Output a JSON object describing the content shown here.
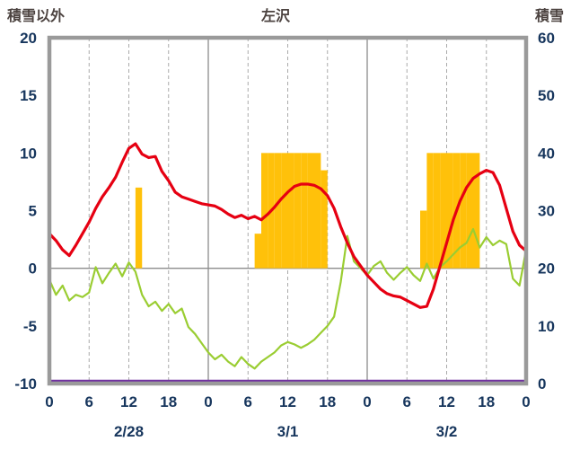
{
  "chart_data": {
    "type": "line+bar",
    "title": "左沢",
    "hours_total": 72,
    "left_axis": {
      "title": "積雪以外",
      "min": -10,
      "max": 20,
      "ticks": [
        20,
        15,
        10,
        5,
        0,
        -5,
        -10
      ]
    },
    "right_axis": {
      "title": "積雪",
      "min": 0,
      "max": 60,
      "ticks": [
        60,
        50,
        40,
        30,
        20,
        10,
        0
      ]
    },
    "x_ticks": [
      {
        "hour": 0,
        "label": "0"
      },
      {
        "hour": 6,
        "label": "6"
      },
      {
        "hour": 12,
        "label": "12"
      },
      {
        "hour": 18,
        "label": "18"
      },
      {
        "hour": 24,
        "label": "0"
      },
      {
        "hour": 30,
        "label": "6"
      },
      {
        "hour": 36,
        "label": "12"
      },
      {
        "hour": 42,
        "label": "18"
      },
      {
        "hour": 48,
        "label": "0"
      },
      {
        "hour": 54,
        "label": "6"
      },
      {
        "hour": 60,
        "label": "12"
      },
      {
        "hour": 66,
        "label": "18"
      },
      {
        "hour": 72,
        "label": "0"
      }
    ],
    "date_labels": [
      {
        "label": "2/28",
        "center_hour": 12
      },
      {
        "label": "3/1",
        "center_hour": 36
      },
      {
        "label": "3/2",
        "center_hour": 60
      }
    ],
    "grid": {
      "vertical_dashed_hours": [
        6,
        12,
        18,
        30,
        36,
        42,
        54,
        60,
        66
      ],
      "vertical_solid_hours": [
        24,
        48
      ],
      "horizontal_solid_values": [
        0
      ]
    },
    "colors": {
      "frame": "#9a9a9a",
      "grid_solid": "#8c8c8c",
      "grid_dashed": "#aaaaaa",
      "axis_text": "#17365d",
      "header_text": "#4c4340",
      "background": "#ffffff"
    },
    "series": [
      {
        "name": "orange-bars",
        "type": "bar",
        "axis": "left",
        "color": "#ffc10a",
        "bars": [
          {
            "hour": 13,
            "value": 7
          },
          {
            "hour": 31,
            "value": 3
          },
          {
            "hour": 32,
            "value": 10
          },
          {
            "hour": 33,
            "value": 10
          },
          {
            "hour": 34,
            "value": 10
          },
          {
            "hour": 35,
            "value": 10
          },
          {
            "hour": 36,
            "value": 10
          },
          {
            "hour": 37,
            "value": 10
          },
          {
            "hour": 38,
            "value": 10
          },
          {
            "hour": 39,
            "value": 10
          },
          {
            "hour": 40,
            "value": 10
          },
          {
            "hour": 41,
            "value": 8.5
          },
          {
            "hour": 56,
            "value": 5
          },
          {
            "hour": 57,
            "value": 10
          },
          {
            "hour": 58,
            "value": 10
          },
          {
            "hour": 59,
            "value": 10
          },
          {
            "hour": 60,
            "value": 10
          },
          {
            "hour": 61,
            "value": 10
          },
          {
            "hour": 62,
            "value": 10
          },
          {
            "hour": 63,
            "value": 10
          },
          {
            "hour": 64,
            "value": 10
          }
        ]
      },
      {
        "name": "purple-line",
        "type": "line",
        "axis": "right",
        "color": "#7030a0",
        "width": 2.5,
        "points": [
          [
            0,
            0
          ],
          [
            72,
            0
          ]
        ]
      },
      {
        "name": "green-line",
        "type": "line",
        "axis": "left",
        "color": "#9acd32",
        "width": 2.2,
        "points": [
          [
            0,
            -1.0
          ],
          [
            1,
            -2.3
          ],
          [
            2,
            -1.5
          ],
          [
            3,
            -2.8
          ],
          [
            4,
            -2.3
          ],
          [
            5,
            -2.5
          ],
          [
            6,
            -2.1
          ],
          [
            7,
            0.1
          ],
          [
            8,
            -1.3
          ],
          [
            9,
            -0.4
          ],
          [
            10,
            0.4
          ],
          [
            11,
            -0.7
          ],
          [
            12,
            0.5
          ],
          [
            13,
            -0.3
          ],
          [
            14,
            -2.3
          ],
          [
            15,
            -3.3
          ],
          [
            16,
            -2.9
          ],
          [
            17,
            -3.7
          ],
          [
            18,
            -3.1
          ],
          [
            19,
            -3.9
          ],
          [
            20,
            -3.5
          ],
          [
            21,
            -5.1
          ],
          [
            22,
            -5.7
          ],
          [
            23,
            -6.5
          ],
          [
            24,
            -7.3
          ],
          [
            25,
            -7.9
          ],
          [
            26,
            -7.5
          ],
          [
            27,
            -8.1
          ],
          [
            28,
            -8.5
          ],
          [
            29,
            -7.7
          ],
          [
            30,
            -8.3
          ],
          [
            31,
            -8.7
          ],
          [
            32,
            -8.1
          ],
          [
            33,
            -7.7
          ],
          [
            34,
            -7.3
          ],
          [
            35,
            -6.7
          ],
          [
            36,
            -6.4
          ],
          [
            37,
            -6.6
          ],
          [
            38,
            -6.9
          ],
          [
            39,
            -6.6
          ],
          [
            40,
            -6.2
          ],
          [
            41,
            -5.6
          ],
          [
            42,
            -5.0
          ],
          [
            43,
            -4.2
          ],
          [
            44,
            -1.2
          ],
          [
            45,
            2.8
          ],
          [
            46,
            0.6
          ],
          [
            47,
            0.0
          ],
          [
            48,
            -0.6
          ],
          [
            49,
            0.2
          ],
          [
            50,
            0.6
          ],
          [
            51,
            -0.4
          ],
          [
            52,
            -1.0
          ],
          [
            53,
            -0.4
          ],
          [
            54,
            0.1
          ],
          [
            55,
            -0.6
          ],
          [
            56,
            -1.1
          ],
          [
            57,
            0.4
          ],
          [
            58,
            -0.9
          ],
          [
            59,
            0.1
          ],
          [
            60,
            0.6
          ],
          [
            61,
            1.2
          ],
          [
            62,
            1.8
          ],
          [
            63,
            2.2
          ],
          [
            64,
            3.4
          ],
          [
            65,
            1.8
          ],
          [
            66,
            2.7
          ],
          [
            67,
            2.0
          ],
          [
            68,
            2.4
          ],
          [
            69,
            2.1
          ],
          [
            70,
            -0.9
          ],
          [
            71,
            -1.5
          ],
          [
            72,
            1.6
          ]
        ]
      },
      {
        "name": "red-line",
        "type": "line",
        "axis": "left",
        "color": "#e60012",
        "width": 3.2,
        "points": [
          [
            0,
            3.0
          ],
          [
            1,
            2.4
          ],
          [
            2,
            1.6
          ],
          [
            3,
            1.1
          ],
          [
            4,
            2.0
          ],
          [
            5,
            3.0
          ],
          [
            6,
            4.0
          ],
          [
            7,
            5.2
          ],
          [
            8,
            6.2
          ],
          [
            9,
            7.0
          ],
          [
            10,
            7.9
          ],
          [
            11,
            9.2
          ],
          [
            12,
            10.4
          ],
          [
            13,
            10.8
          ],
          [
            14,
            9.9
          ],
          [
            15,
            9.6
          ],
          [
            16,
            9.7
          ],
          [
            17,
            8.4
          ],
          [
            18,
            7.6
          ],
          [
            19,
            6.6
          ],
          [
            20,
            6.2
          ],
          [
            21,
            6.0
          ],
          [
            22,
            5.8
          ],
          [
            23,
            5.6
          ],
          [
            24,
            5.5
          ],
          [
            25,
            5.4
          ],
          [
            26,
            5.1
          ],
          [
            27,
            4.7
          ],
          [
            28,
            4.4
          ],
          [
            29,
            4.6
          ],
          [
            30,
            4.3
          ],
          [
            31,
            4.5
          ],
          [
            32,
            4.2
          ],
          [
            33,
            4.7
          ],
          [
            34,
            5.3
          ],
          [
            35,
            6.0
          ],
          [
            36,
            6.6
          ],
          [
            37,
            7.1
          ],
          [
            38,
            7.3
          ],
          [
            39,
            7.3
          ],
          [
            40,
            7.2
          ],
          [
            41,
            6.9
          ],
          [
            42,
            6.3
          ],
          [
            43,
            5.2
          ],
          [
            44,
            3.6
          ],
          [
            45,
            2.2
          ],
          [
            46,
            1.0
          ],
          [
            47,
            0.2
          ],
          [
            48,
            -0.6
          ],
          [
            49,
            -1.2
          ],
          [
            50,
            -1.8
          ],
          [
            51,
            -2.2
          ],
          [
            52,
            -2.4
          ],
          [
            53,
            -2.5
          ],
          [
            54,
            -2.8
          ],
          [
            55,
            -3.1
          ],
          [
            56,
            -3.4
          ],
          [
            57,
            -3.3
          ],
          [
            58,
            -1.8
          ],
          [
            59,
            0.2
          ],
          [
            60,
            2.2
          ],
          [
            61,
            4.2
          ],
          [
            62,
            5.8
          ],
          [
            63,
            7.0
          ],
          [
            64,
            7.8
          ],
          [
            65,
            8.2
          ],
          [
            66,
            8.5
          ],
          [
            67,
            8.3
          ],
          [
            68,
            7.2
          ],
          [
            69,
            5.2
          ],
          [
            70,
            3.2
          ],
          [
            71,
            2.0
          ],
          [
            72,
            1.5
          ]
        ]
      }
    ]
  }
}
